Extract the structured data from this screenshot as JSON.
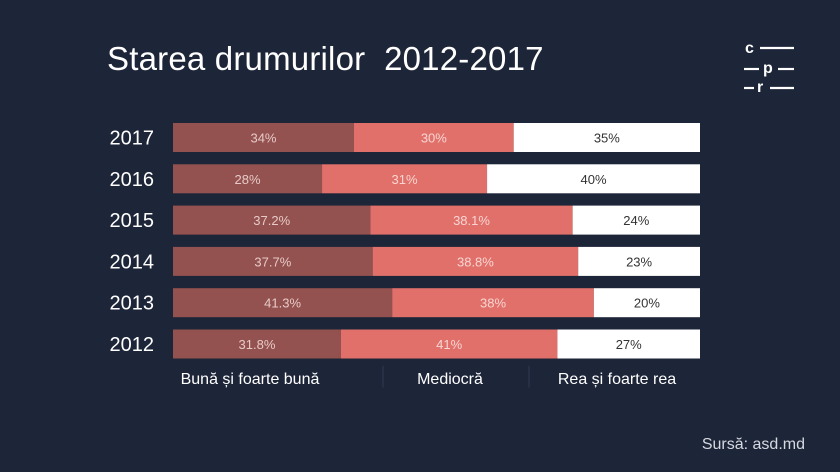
{
  "title": "Starea drumurilor  2012-2017",
  "source": "Sursă: asd.md",
  "logo": {
    "letters": [
      "c",
      "p",
      "r"
    ]
  },
  "colors": {
    "background": "#1d2538",
    "buna": "#93524f",
    "mediocra": "#e2706a",
    "rea": "#ffffff"
  },
  "chart_data": {
    "type": "bar",
    "orientation": "horizontal",
    "stacked": true,
    "title": "Starea drumurilor  2012-2017",
    "categories": [
      "2017",
      "2016",
      "2015",
      "2014",
      "2013",
      "2012"
    ],
    "series": [
      {
        "name": "Bună și foarte bună",
        "values": [
          34,
          28,
          37.2,
          37.7,
          41.3,
          31.8
        ],
        "labels": [
          "34%",
          "28%",
          "37.2%",
          "37.7%",
          "41.3%",
          "31.8%"
        ],
        "color": "#93524f"
      },
      {
        "name": "Mediocră",
        "values": [
          30,
          31,
          38.1,
          38.8,
          38,
          41
        ],
        "labels": [
          "30%",
          "31%",
          "38.1%",
          "38.8%",
          "38%",
          "41%"
        ],
        "color": "#e2706a"
      },
      {
        "name": "Rea și foarte rea",
        "values": [
          35,
          40,
          24,
          23,
          20,
          27
        ],
        "labels": [
          "35%",
          "40%",
          "24%",
          "23%",
          "20%",
          "27%"
        ],
        "color": "#ffffff"
      }
    ],
    "legend_position": "bottom",
    "grid": false
  }
}
